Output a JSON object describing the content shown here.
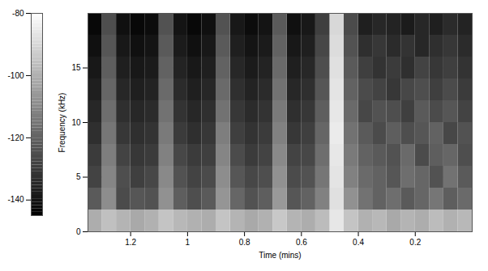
{
  "chart_data": {
    "type": "heatmap",
    "x_label": "Time (mins)",
    "y_label": "Frequency (kHz)",
    "xlim": [
      1.35,
      0
    ],
    "xticks": [
      1.2,
      1,
      0.8,
      0.6,
      0.4,
      0.2
    ],
    "ylim": [
      0,
      20
    ],
    "yticks": [
      0,
      5,
      10,
      15
    ],
    "x_edges": [
      0,
      0.05,
      0.1,
      0.15,
      0.2,
      0.25,
      0.3,
      0.35,
      0.4,
      0.45,
      0.5,
      0.55,
      0.6,
      0.65,
      0.7,
      0.75,
      0.8,
      0.85,
      0.9,
      0.95,
      1,
      1.05,
      1.1,
      1.15,
      1.2,
      1.25,
      1.3,
      1.35
    ],
    "y_edges": [
      0,
      2,
      4,
      6,
      8,
      10,
      12,
      14,
      16,
      18,
      20
    ],
    "cells": [
      [
        -98,
        -100,
        -97,
        -101,
        -99,
        -102,
        -98,
        -100,
        -95,
        -86,
        -97,
        -101,
        -99,
        -94,
        -100,
        -102,
        -99,
        -95,
        -101,
        -100,
        -98,
        -95,
        -100,
        -102,
        -99,
        -96,
        -101
      ],
      [
        -118,
        -121,
        -115,
        -119,
        -122,
        -117,
        -120,
        -116,
        -108,
        -88,
        -112,
        -120,
        -123,
        -106,
        -121,
        -124,
        -119,
        -107,
        -122,
        -125,
        -121,
        -108,
        -124,
        -123,
        -126,
        -109,
        -122
      ],
      [
        -122,
        -116,
        -124,
        -119,
        -117,
        -123,
        -120,
        -118,
        -112,
        -87,
        -115,
        -124,
        -126,
        -108,
        -125,
        -127,
        -123,
        -109,
        -126,
        -128,
        -124,
        -110,
        -127,
        -129,
        -125,
        -111,
        -128
      ],
      [
        -125,
        -119,
        -121,
        -126,
        -118,
        -124,
        -122,
        -120,
        -114,
        -86,
        -117,
        -127,
        -128,
        -110,
        -128,
        -130,
        -126,
        -111,
        -129,
        -130,
        -127,
        -112,
        -130,
        -131,
        -128,
        -113,
        -130
      ],
      [
        -124,
        -127,
        -120,
        -123,
        -125,
        -121,
        -126,
        -122,
        -116,
        -85,
        -119,
        -129,
        -131,
        -112,
        -130,
        -132,
        -129,
        -113,
        -131,
        -133,
        -130,
        -114,
        -132,
        -133,
        -131,
        -115,
        -133
      ],
      [
        -128,
        -123,
        -126,
        -122,
        -129,
        -125,
        -124,
        -127,
        -118,
        -86,
        -121,
        -131,
        -133,
        -114,
        -132,
        -134,
        -131,
        -116,
        -133,
        -135,
        -132,
        -116,
        -134,
        -135,
        -133,
        -117,
        -135
      ],
      [
        -130,
        -126,
        -129,
        -125,
        -127,
        -131,
        -128,
        -126,
        -120,
        -87,
        -123,
        -133,
        -135,
        -116,
        -134,
        -136,
        -133,
        -118,
        -135,
        -137,
        -134,
        -118,
        -136,
        -137,
        -135,
        -119,
        -137
      ],
      [
        -132,
        -129,
        -131,
        -128,
        -133,
        -130,
        -132,
        -129,
        -122,
        -88,
        -125,
        -135,
        -137,
        -118,
        -136,
        -138,
        -135,
        -120,
        -137,
        -139,
        -136,
        -120,
        -138,
        -139,
        -137,
        -121,
        -139
      ],
      [
        -134,
        -131,
        -133,
        -135,
        -132,
        -134,
        -131,
        -133,
        -124,
        -89,
        -127,
        -137,
        -139,
        -120,
        -138,
        -140,
        -137,
        -122,
        -139,
        -141,
        -138,
        -122,
        -140,
        -141,
        -139,
        -123,
        -141
      ],
      [
        -136,
        -134,
        -137,
        -135,
        -138,
        -136,
        -135,
        -137,
        -126,
        -90,
        -129,
        -139,
        -141,
        -122,
        -140,
        -142,
        -139,
        -124,
        -141,
        -143,
        -140,
        -124,
        -142,
        -143,
        -141,
        -125,
        -143
      ]
    ],
    "zlim": [
      -145,
      -80
    ],
    "zticks": [
      -140,
      -120,
      -100,
      -80
    ]
  }
}
